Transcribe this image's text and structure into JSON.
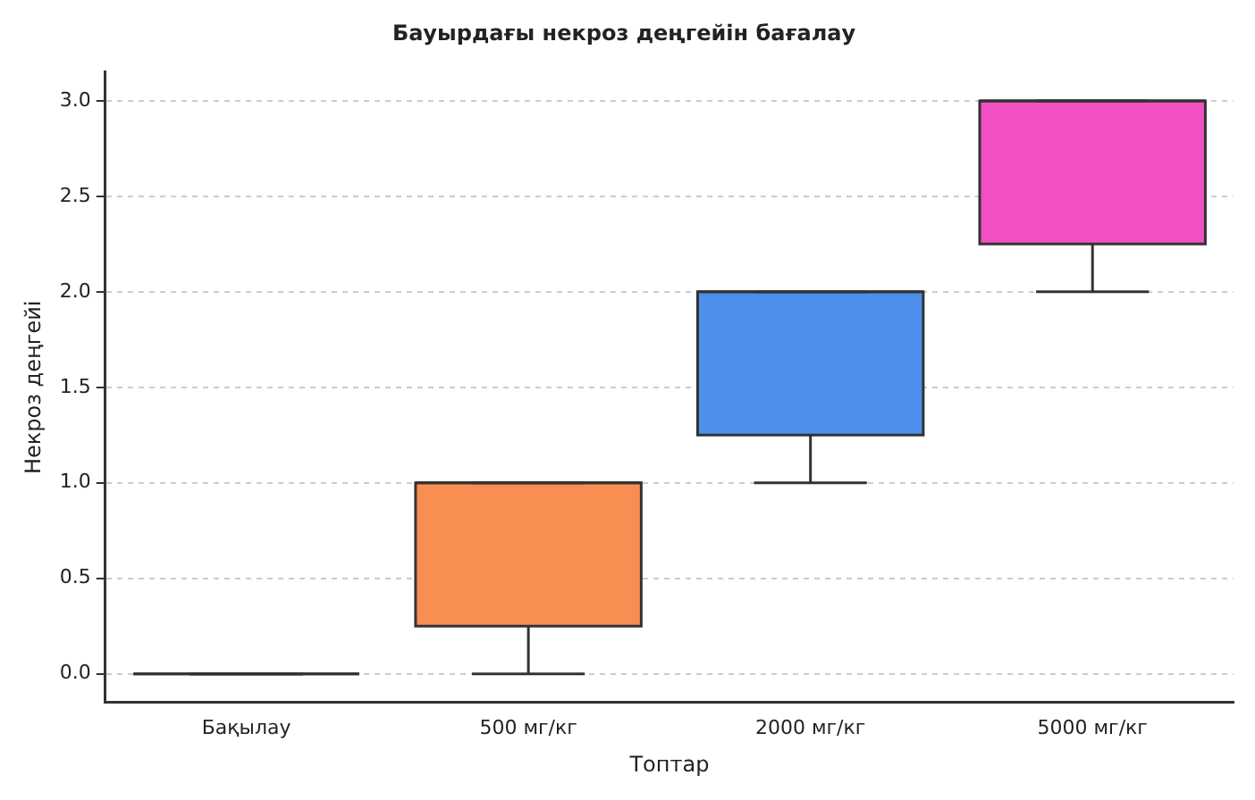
{
  "chart_data": {
    "type": "box",
    "title": "Бауырдағы некроз деңгейін бағалау",
    "xlabel": "Топтар",
    "ylabel": "Некроз деңгейі",
    "categories": [
      "Бақылау",
      "500 мг/кг",
      "2000 мг/кг",
      "5000 мг/кг"
    ],
    "colors": [
      "#333333",
      "#f98e52",
      "#4d8fea",
      "#f24fc3"
    ],
    "boxes": [
      {
        "low": 0,
        "q1": 0,
        "median": 0,
        "q3": 0,
        "high": 0
      },
      {
        "low": 0,
        "q1": 0.25,
        "median": 1,
        "q3": 1,
        "high": 1
      },
      {
        "low": 1,
        "q1": 1.25,
        "median": 2,
        "q3": 2,
        "high": 2
      },
      {
        "low": 2,
        "q1": 2.25,
        "median": 3,
        "q3": 3,
        "high": 3
      }
    ],
    "ylim": [
      -0.15,
      3.15
    ],
    "yticks": [
      {
        "value": 0,
        "label": "0.0"
      },
      {
        "value": 0.5,
        "label": "0.5"
      },
      {
        "value": 1,
        "label": "1.0"
      },
      {
        "value": 1.5,
        "label": "1.5"
      },
      {
        "value": 2,
        "label": "2.0"
      },
      {
        "value": 2.5,
        "label": "2.5"
      },
      {
        "value": 3,
        "label": "3.0"
      }
    ],
    "grid": "y",
    "legend": false
  }
}
